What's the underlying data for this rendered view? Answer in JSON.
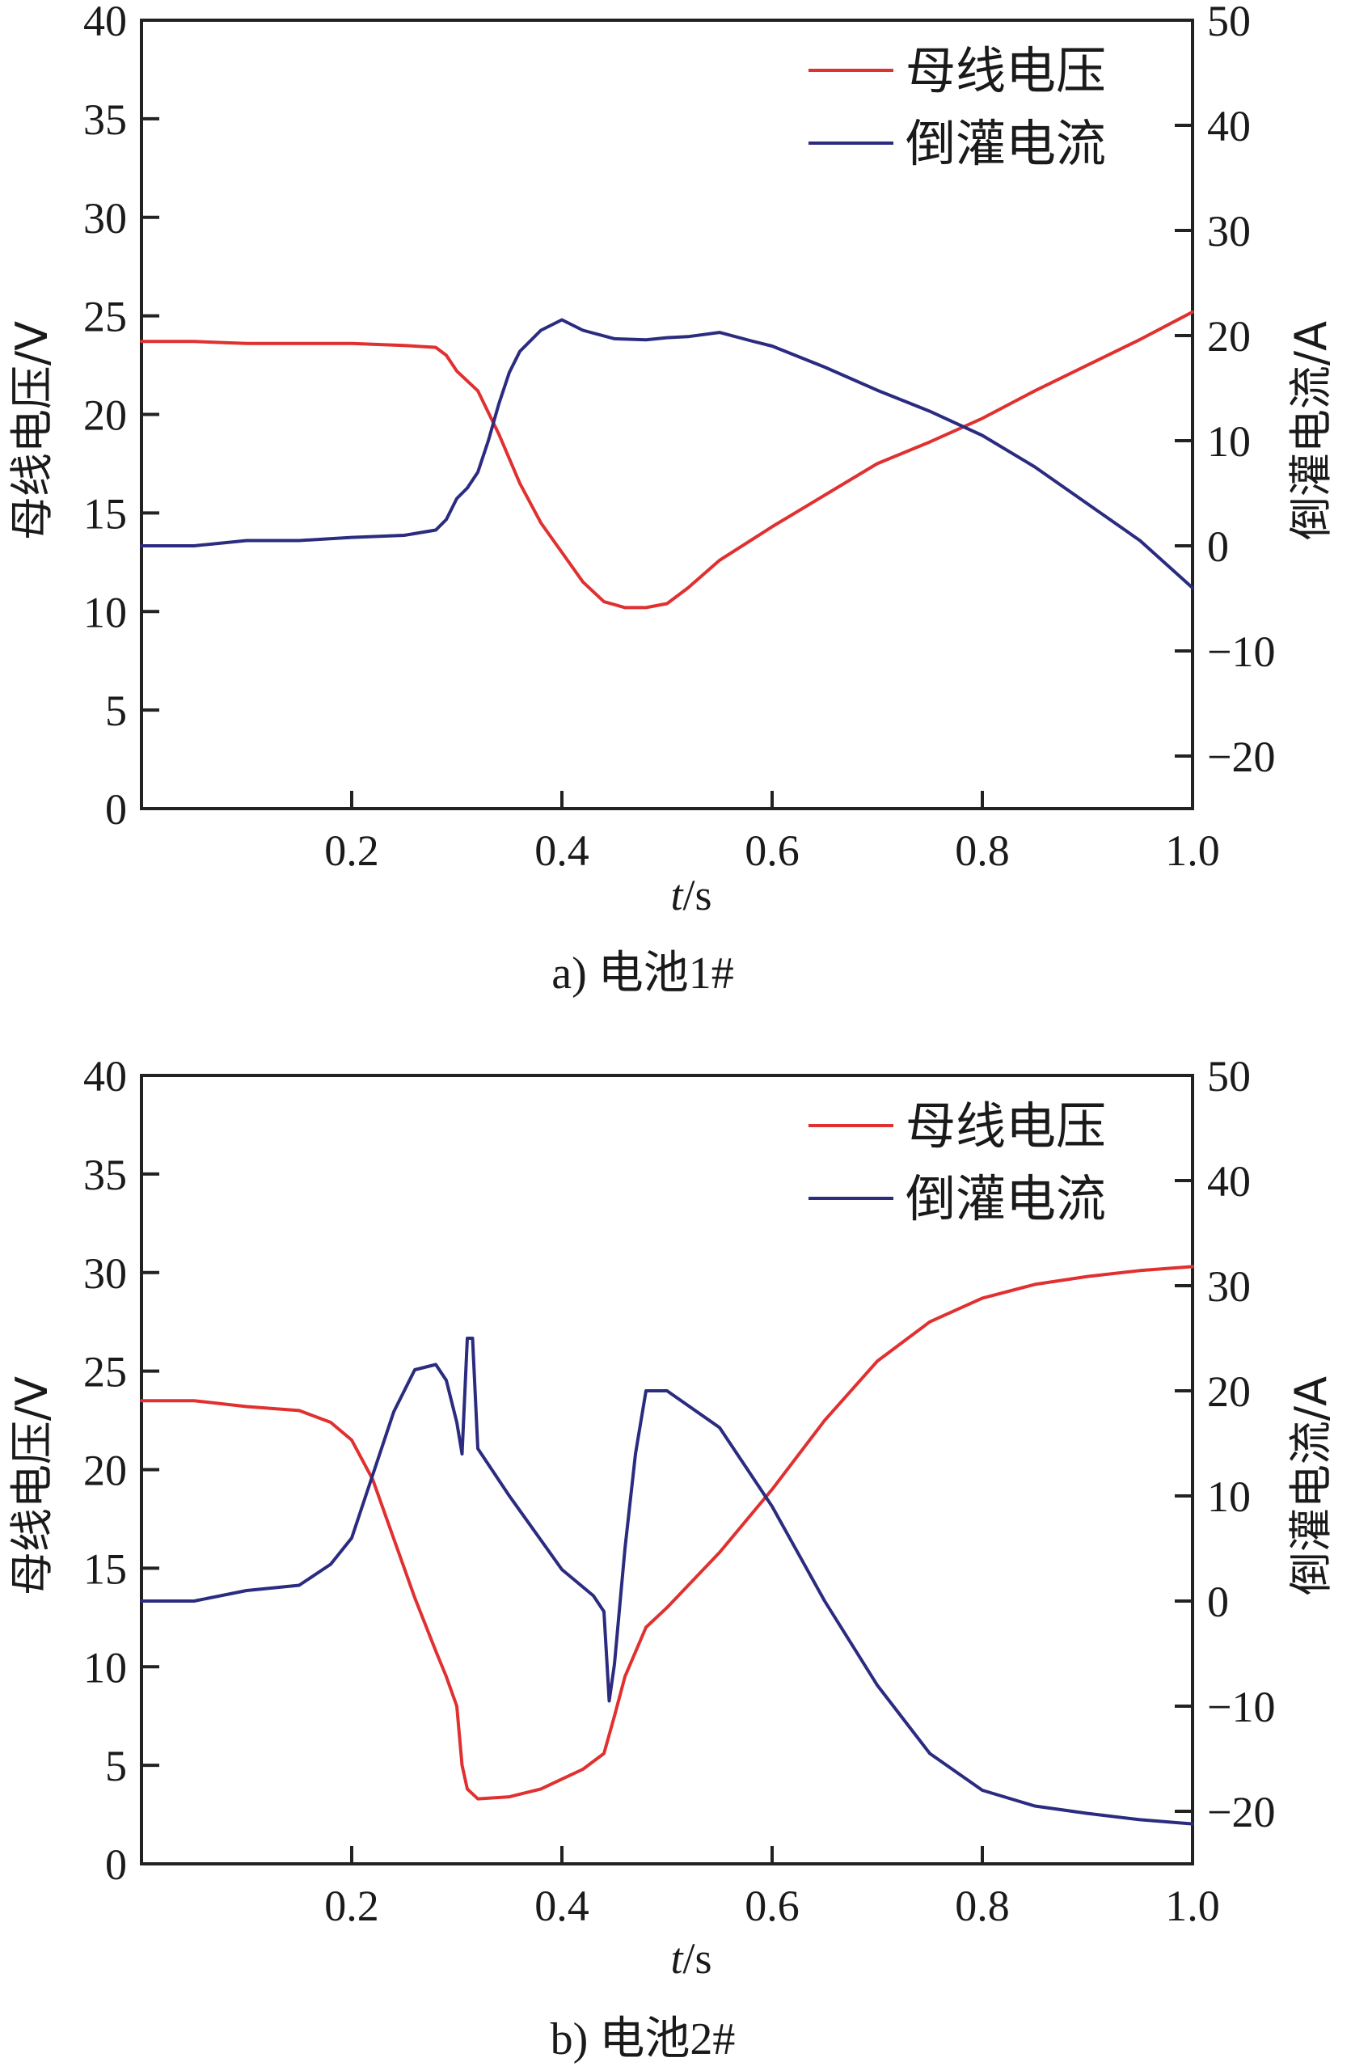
{
  "colors": {
    "voltage": "#e03030",
    "current": "#2b2b80",
    "axis": "#222222"
  },
  "chart_data": [
    {
      "type": "line",
      "caption": "a) 电池1#",
      "xlabel_italic": "t",
      "xlabel_unit": "/s",
      "ylabel_left": "母线电压/V",
      "ylabel_right": "倒灌电流/A",
      "xlim": [
        0,
        1.0
      ],
      "ylim_left": [
        0,
        40
      ],
      "ylim_right": [
        -25,
        50
      ],
      "xticks": [
        0.2,
        0.4,
        0.6,
        0.8,
        1.0
      ],
      "xtick_labels": [
        "0.2",
        "0.4",
        "0.6",
        "0.8",
        "1.0"
      ],
      "yticks_left": [
        0,
        5,
        10,
        15,
        20,
        25,
        30,
        35,
        40
      ],
      "ytick_labels_left": [
        "0",
        "5",
        "10",
        "15",
        "20",
        "25",
        "30",
        "35",
        "40"
      ],
      "yticks_right": [
        -20,
        -10,
        0,
        10,
        20,
        30,
        40,
        50
      ],
      "ytick_labels_right": [
        "−20",
        "−10",
        "0",
        "10",
        "20",
        "30",
        "40",
        "50"
      ],
      "legend_position": "top-right",
      "series": [
        {
          "name": "母线电压",
          "axis": "left",
          "color": "#e03030",
          "x": [
            0.0,
            0.05,
            0.1,
            0.15,
            0.2,
            0.25,
            0.28,
            0.29,
            0.3,
            0.32,
            0.34,
            0.36,
            0.38,
            0.4,
            0.42,
            0.44,
            0.46,
            0.48,
            0.5,
            0.52,
            0.55,
            0.6,
            0.65,
            0.7,
            0.75,
            0.8,
            0.85,
            0.9,
            0.95,
            1.0
          ],
          "values": [
            23.7,
            23.7,
            23.6,
            23.6,
            23.6,
            23.5,
            23.4,
            23.0,
            22.2,
            21.2,
            19.0,
            16.5,
            14.5,
            13.0,
            11.5,
            10.5,
            10.2,
            10.2,
            10.4,
            11.2,
            12.6,
            14.3,
            15.9,
            17.5,
            18.6,
            19.8,
            21.2,
            22.5,
            23.8,
            25.2
          ]
        },
        {
          "name": "倒灌电流",
          "axis": "right",
          "color": "#2b2b80",
          "x": [
            0.0,
            0.05,
            0.1,
            0.15,
            0.2,
            0.25,
            0.28,
            0.29,
            0.3,
            0.31,
            0.32,
            0.33,
            0.34,
            0.35,
            0.36,
            0.37,
            0.38,
            0.39,
            0.4,
            0.42,
            0.45,
            0.48,
            0.5,
            0.52,
            0.55,
            0.58,
            0.6,
            0.65,
            0.7,
            0.75,
            0.8,
            0.85,
            0.9,
            0.95,
            1.0
          ],
          "values": [
            0.0,
            0.0,
            0.5,
            0.5,
            0.8,
            1.0,
            1.5,
            2.5,
            4.5,
            5.5,
            7.0,
            10.0,
            13.5,
            16.5,
            18.5,
            19.5,
            20.5,
            21.0,
            21.5,
            20.5,
            19.7,
            19.6,
            19.8,
            19.9,
            20.3,
            19.5,
            19.0,
            17.0,
            14.8,
            12.8,
            10.5,
            7.5,
            4.0,
            0.5,
            -4.0
          ]
        }
      ]
    },
    {
      "type": "line",
      "caption": "b) 电池2#",
      "xlabel_italic": "t",
      "xlabel_unit": "/s",
      "ylabel_left": "母线电压/V",
      "ylabel_right": "倒灌电流/A",
      "xlim": [
        0,
        1.0
      ],
      "ylim_left": [
        0,
        40
      ],
      "ylim_right": [
        -25,
        50
      ],
      "xticks": [
        0.2,
        0.4,
        0.6,
        0.8,
        1.0
      ],
      "xtick_labels": [
        "0.2",
        "0.4",
        "0.6",
        "0.8",
        "1.0"
      ],
      "yticks_left": [
        0,
        5,
        10,
        15,
        20,
        25,
        30,
        35,
        40
      ],
      "ytick_labels_left": [
        "0",
        "5",
        "10",
        "15",
        "20",
        "25",
        "30",
        "35",
        "40"
      ],
      "yticks_right": [
        -20,
        -10,
        0,
        10,
        20,
        30,
        40,
        50
      ],
      "ytick_labels_right": [
        "−20",
        "−10",
        "0",
        "10",
        "20",
        "30",
        "40",
        "50"
      ],
      "legend_position": "top-right",
      "series": [
        {
          "name": "母线电压",
          "axis": "left",
          "color": "#e03030",
          "x": [
            0.0,
            0.05,
            0.1,
            0.15,
            0.18,
            0.2,
            0.22,
            0.24,
            0.26,
            0.28,
            0.29,
            0.3,
            0.305,
            0.31,
            0.32,
            0.35,
            0.38,
            0.4,
            0.42,
            0.44,
            0.45,
            0.46,
            0.48,
            0.5,
            0.55,
            0.6,
            0.65,
            0.7,
            0.75,
            0.8,
            0.85,
            0.9,
            0.95,
            1.0
          ],
          "values": [
            23.5,
            23.5,
            23.2,
            23.0,
            22.4,
            21.5,
            19.5,
            16.5,
            13.5,
            10.8,
            9.5,
            8.0,
            5.0,
            3.8,
            3.3,
            3.4,
            3.8,
            4.3,
            4.8,
            5.6,
            7.5,
            9.5,
            12.0,
            13.0,
            15.8,
            19.0,
            22.5,
            25.5,
            27.5,
            28.7,
            29.4,
            29.8,
            30.1,
            30.3
          ]
        },
        {
          "name": "倒灌电流",
          "axis": "right",
          "color": "#2b2b80",
          "x": [
            0.0,
            0.05,
            0.1,
            0.15,
            0.18,
            0.2,
            0.22,
            0.24,
            0.26,
            0.28,
            0.29,
            0.3,
            0.305,
            0.31,
            0.315,
            0.32,
            0.35,
            0.4,
            0.43,
            0.44,
            0.445,
            0.45,
            0.46,
            0.47,
            0.48,
            0.5,
            0.55,
            0.6,
            0.65,
            0.7,
            0.75,
            0.8,
            0.85,
            0.9,
            0.95,
            1.0
          ],
          "values": [
            0.0,
            0.0,
            1.0,
            1.5,
            3.5,
            6.0,
            12.0,
            18.0,
            22.0,
            22.5,
            21.0,
            17.0,
            14.0,
            25.0,
            25.0,
            14.5,
            10.0,
            3.0,
            0.5,
            -1.0,
            -9.5,
            -6.0,
            5.0,
            14.0,
            20.0,
            20.0,
            16.5,
            9.0,
            0.0,
            -8.0,
            -14.5,
            -18.0,
            -19.5,
            -20.2,
            -20.8,
            -21.2
          ]
        }
      ]
    }
  ]
}
